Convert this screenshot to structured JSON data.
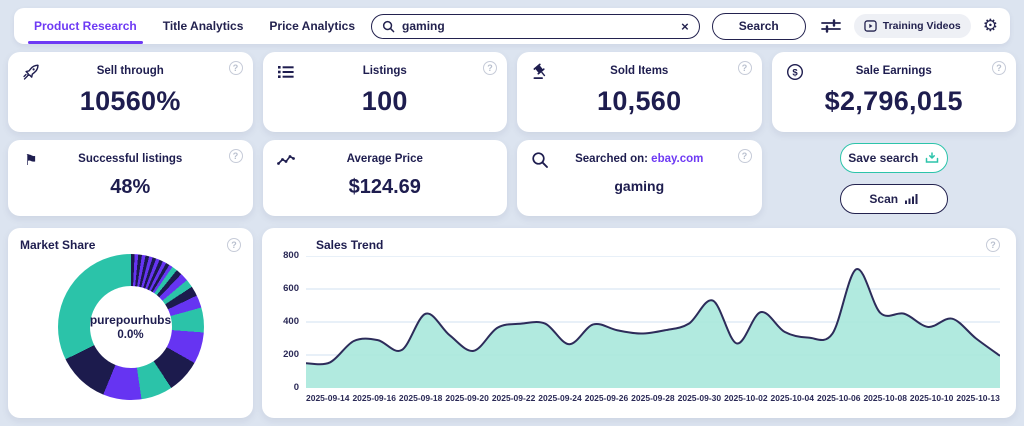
{
  "colors": {
    "accent_purple": "#6e3af4",
    "navy": "#1e1d4f",
    "teal": "#2cc4aa",
    "area_fill": "#a9e8dc",
    "area_line": "#2d2c5a",
    "gridline": "#d9e6f4",
    "page_bg": "#dce4f0"
  },
  "header": {
    "tabs": [
      {
        "label": "Product Research",
        "active": true
      },
      {
        "label": "Title Analytics",
        "active": false
      },
      {
        "label": "Price Analytics",
        "active": false
      }
    ],
    "search": {
      "value": "gaming",
      "clear_icon": "×"
    },
    "search_button": "Search",
    "training_videos": "Training Videos",
    "gear_icon": "⚙"
  },
  "stats": [
    {
      "title": "Sell through",
      "value": "10560%",
      "icon": "rocket-icon",
      "help": "?"
    },
    {
      "title": "Listings",
      "value": "100",
      "icon": "list-icon",
      "help": "?"
    },
    {
      "title": "Sold Items",
      "value": "10,560",
      "icon": "gavel-icon",
      "help": "?"
    },
    {
      "title": "Sale Earnings",
      "value": "$2,796,015",
      "icon": "dollar-icon",
      "help": "?"
    },
    {
      "title": "Successful listings",
      "value": "48%",
      "icon": "flag-icon",
      "flag_glyph": "⚑",
      "help": "?"
    },
    {
      "title": "Average Price",
      "value": "$124.69",
      "icon": "trend-icon"
    },
    {
      "title_prefix": "Searched on:",
      "title_link": "ebay.com",
      "value": "gaming",
      "icon": "search-icon",
      "help": "?"
    }
  ],
  "actions": {
    "save_search": "Save search",
    "scan": "Scan"
  },
  "chart_data": [
    {
      "type": "pie",
      "subtype": "donut",
      "title": "Market Share",
      "center_label": "purepourhubs",
      "center_value": "0.0%",
      "help": "?",
      "segments": [
        {
          "color": "#1c1b4d",
          "value": 0.8
        },
        {
          "color": "#6634f2",
          "value": 0.8
        },
        {
          "color": "#1c1b4d",
          "value": 0.8
        },
        {
          "color": "#6634f2",
          "value": 0.8
        },
        {
          "color": "#1c1b4d",
          "value": 0.8
        },
        {
          "color": "#6634f2",
          "value": 0.8
        },
        {
          "color": "#1c1b4d",
          "value": 0.8
        },
        {
          "color": "#6634f2",
          "value": 0.8
        },
        {
          "color": "#1c1b4d",
          "value": 0.8
        },
        {
          "color": "#6634f2",
          "value": 0.8
        },
        {
          "color": "#1c1b4d",
          "value": 0.8
        },
        {
          "color": "#6634f2",
          "value": 0.8
        },
        {
          "color": "#2bc3a9",
          "value": 1.2
        },
        {
          "color": "#1c1b4d",
          "value": 1.3
        },
        {
          "color": "#6634f2",
          "value": 1.8
        },
        {
          "color": "#2bc3a9",
          "value": 1.8
        },
        {
          "color": "#1c1b4d",
          "value": 2.2
        },
        {
          "color": "#6634f2",
          "value": 2.8
        },
        {
          "color": "#2bc3a9",
          "value": 5.5
        },
        {
          "color": "#6634f2",
          "value": 7.0
        },
        {
          "color": "#1c1b4d",
          "value": 7.5
        },
        {
          "color": "#2bc3a9",
          "value": 7.0
        },
        {
          "color": "#6634f2",
          "value": 8.5
        },
        {
          "color": "#1c1b4d",
          "value": 11.5
        },
        {
          "color": "#2bc3a9",
          "value": 32.3
        }
      ]
    },
    {
      "type": "area",
      "title": "Sales Trend",
      "help": "?",
      "x": [
        "2025-09-14",
        "2025-09-15",
        "2025-09-16",
        "2025-09-17",
        "2025-09-18",
        "2025-09-19",
        "2025-09-20",
        "2025-09-21",
        "2025-09-22",
        "2025-09-23",
        "2025-09-24",
        "2025-09-25",
        "2025-09-26",
        "2025-09-27",
        "2025-09-28",
        "2025-09-29",
        "2025-09-30",
        "2025-10-01",
        "2025-10-02",
        "2025-10-03",
        "2025-10-04",
        "2025-10-05",
        "2025-10-06",
        "2025-10-07",
        "2025-10-08",
        "2025-10-09",
        "2025-10-10",
        "2025-10-11",
        "2025-10-12",
        "2025-10-13"
      ],
      "values": [
        150,
        155,
        285,
        290,
        230,
        450,
        320,
        225,
        365,
        390,
        390,
        265,
        385,
        350,
        330,
        350,
        390,
        530,
        270,
        460,
        340,
        305,
        330,
        720,
        455,
        450,
        370,
        420,
        300,
        195
      ],
      "xticks": [
        "2025-09-14",
        "2025-09-16",
        "2025-09-18",
        "2025-09-20",
        "2025-09-22",
        "2025-09-24",
        "2025-09-26",
        "2025-09-28",
        "2025-09-30",
        "2025-10-02",
        "2025-10-04",
        "2025-10-06",
        "2025-10-08",
        "2025-10-10",
        "2025-10-13"
      ],
      "yticks": [
        0,
        200,
        400,
        600,
        800
      ],
      "ylim": [
        0,
        800
      ],
      "grid": true,
      "legend": false
    }
  ]
}
